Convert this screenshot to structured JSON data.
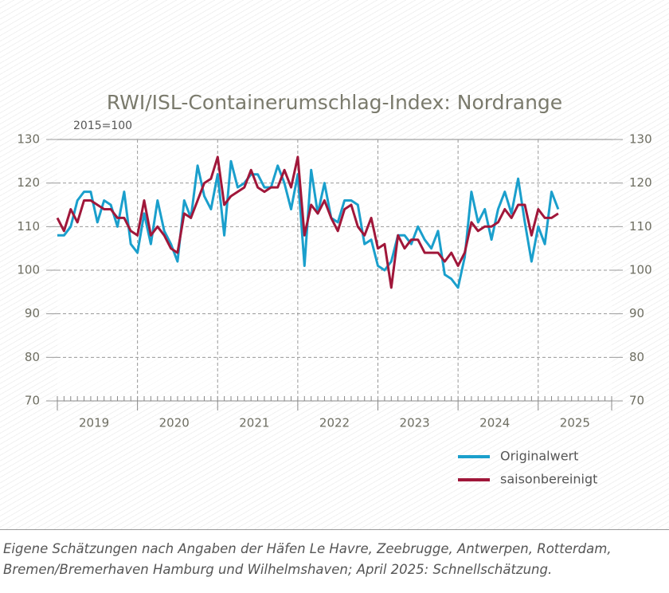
{
  "chart_data": {
    "type": "line",
    "title": "RWI/ISL-Containerumschlag-Index: Nordrange",
    "subtitle": "2015=100",
    "categories": [
      null,
      null,
      null,
      null,
      null,
      null,
      "2019",
      null,
      null,
      null,
      null,
      null,
      null,
      null,
      null,
      null,
      null,
      null,
      "2020",
      null,
      null,
      null,
      null,
      null,
      null,
      null,
      null,
      null,
      null,
      null,
      "2021",
      null,
      null,
      null,
      null,
      null,
      null,
      null,
      null,
      null,
      null,
      null,
      "2022",
      null,
      null,
      null,
      null,
      null,
      null,
      null,
      null,
      null,
      null,
      null,
      "2023",
      null,
      null,
      null,
      null,
      null,
      null,
      null,
      null,
      null,
      null,
      null,
      "2024",
      null,
      null,
      null,
      null,
      null,
      null,
      null,
      null,
      null,
      null,
      null,
      "2025",
      null,
      null,
      null,
      null,
      null
    ],
    "series": [
      {
        "name": "Originalwert",
        "color": "#1a9fcc",
        "values": [
          108,
          108,
          110,
          116,
          118,
          118,
          111,
          116,
          115,
          110,
          118,
          106,
          104,
          113,
          106,
          116,
          109,
          106,
          102,
          116,
          112,
          124,
          117,
          114,
          122,
          108,
          125,
          119,
          120,
          122,
          122,
          119,
          119,
          124,
          120,
          114,
          122,
          101,
          123,
          113,
          120,
          112,
          111,
          116,
          116,
          115,
          106,
          107,
          101,
          100,
          102,
          108,
          108,
          106,
          110,
          107,
          105,
          109,
          99,
          98,
          96,
          103,
          118,
          111,
          114,
          107,
          114,
          118,
          113,
          121,
          111,
          102,
          110,
          106,
          118,
          114,
          null,
          null,
          null,
          null,
          null,
          null,
          null,
          null
        ]
      },
      {
        "name": "saisonbereinigt",
        "color": "#a0173a",
        "values": [
          112,
          109,
          114,
          111,
          116,
          116,
          115,
          114,
          114,
          112,
          112,
          109,
          108,
          116,
          108,
          110,
          108,
          105,
          104,
          113,
          112,
          116,
          120,
          121,
          126,
          115,
          117,
          118,
          119,
          123,
          119,
          118,
          119,
          119,
          123,
          119,
          126,
          108,
          115,
          113,
          116,
          112,
          109,
          114,
          115,
          110,
          108,
          112,
          105,
          106,
          96,
          108,
          105,
          107,
          107,
          104,
          104,
          104,
          102,
          104,
          101,
          104,
          111,
          109,
          110,
          110,
          111,
          114,
          112,
          115,
          115,
          108,
          114,
          112,
          112,
          113,
          null,
          null,
          null,
          null,
          null,
          null,
          null,
          null
        ]
      }
    ],
    "ylim": [
      70,
      130
    ],
    "yticks": [
      70,
      80,
      90,
      100,
      110,
      120,
      130
    ],
    "grid": true,
    "legend": "bottom-right",
    "footnote": [
      "Eigene Schätzungen nach Angaben der Häfen Le Havre, Zeebrugge, Antwerpen, Rotterdam,",
      "Bremen/Bremerhaven Hamburg und Wilhelmshaven; April 2025: Schnellschätzung."
    ]
  }
}
